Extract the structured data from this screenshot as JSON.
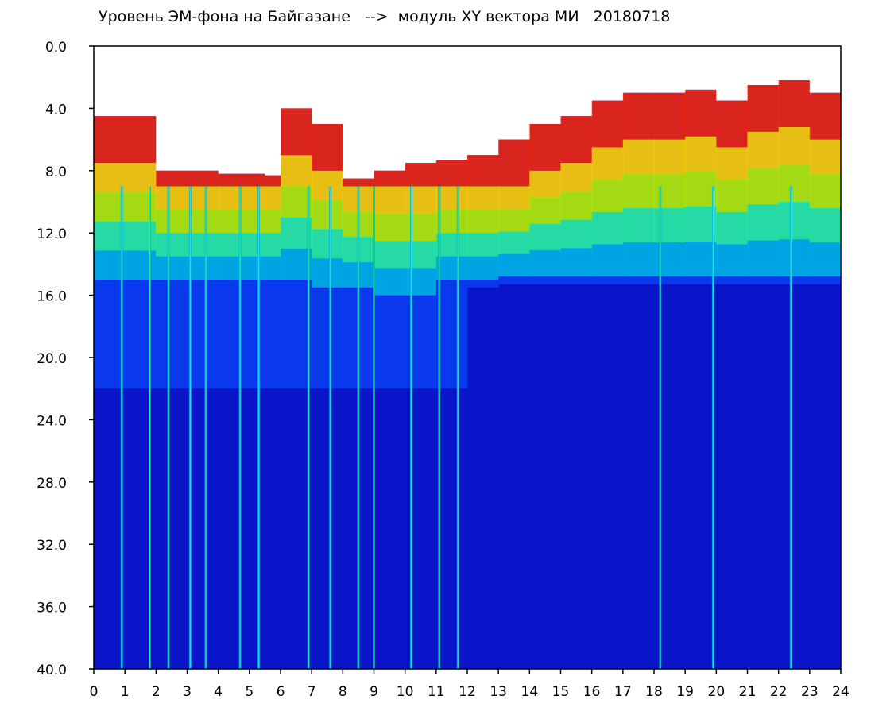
{
  "chart_data": {
    "type": "heatmap",
    "title": "Уровень ЭМ-фона на Байгазане   -->  модуль XY вектора МИ   20180718",
    "xlabel": "",
    "ylabel": "",
    "xlim": [
      0,
      24
    ],
    "ylim": [
      40.0,
      0.0
    ],
    "x_ticks": [
      "0",
      "1",
      "2",
      "3",
      "4",
      "5",
      "6",
      "7",
      "8",
      "9",
      "10",
      "11",
      "12",
      "13",
      "14",
      "15",
      "16",
      "17",
      "18",
      "19",
      "20",
      "21",
      "22",
      "23",
      "24"
    ],
    "y_ticks": [
      "0.0",
      "4.0",
      "8.0",
      "12.0",
      "16.0",
      "20.0",
      "24.0",
      "28.0",
      "32.0",
      "36.0",
      "40.0"
    ],
    "colormap": [
      "#0a14c8",
      "#0a3cf0",
      "#00b4e6",
      "#28f0a0",
      "#b4f000",
      "#ffd200",
      "#ff2800"
    ],
    "grid": false,
    "legend": "none",
    "level_boundary_hours": [
      0,
      2,
      4,
      5.5,
      6,
      7,
      8,
      9,
      10,
      11,
      12,
      13,
      14,
      15,
      16,
      17,
      18,
      19,
      20,
      21,
      22,
      23,
      24
    ],
    "upper_signal_edge": [
      4.5,
      8.0,
      8.2,
      8.3,
      4.0,
      5.0,
      8.5,
      8.0,
      7.5,
      7.3,
      7.0,
      6.0,
      5.0,
      4.5,
      3.5,
      3.0,
      3.0,
      2.8,
      3.5,
      2.5,
      2.2,
      3.0,
      3.0
    ],
    "dense_band_bottom": [
      15.0,
      15.0,
      15.0,
      15.0,
      15.0,
      15.5,
      15.5,
      16.0,
      16.0,
      15.0,
      15.0,
      14.8,
      14.8,
      14.8,
      14.8,
      14.8,
      14.8,
      14.8,
      14.8,
      14.8,
      14.8,
      14.8,
      14.8
    ],
    "bright_stripe_hours": [
      0.9,
      1.8,
      2.4,
      3.1,
      3.6,
      4.7,
      5.3,
      6.9,
      7.6,
      8.5,
      9.0,
      10.2,
      11.1,
      11.7,
      18.2,
      19.9,
      22.4
    ]
  }
}
